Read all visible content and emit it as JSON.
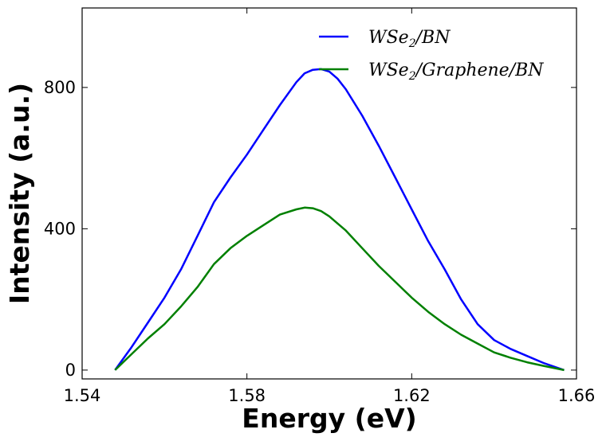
{
  "chart_data": {
    "type": "line",
    "xlabel": "Energy (eV)",
    "ylabel": "Intensity (a.u.)",
    "xlim": [
      1.54,
      1.66
    ],
    "ylim": [
      -25,
      1025
    ],
    "xticks": [
      1.54,
      1.58,
      1.62,
      1.66
    ],
    "xtick_labels": [
      "1.54",
      "1.58",
      "1.62",
      "1.66"
    ],
    "yticks": [
      0,
      400,
      800
    ],
    "ytick_labels": [
      "0",
      "400",
      "800"
    ],
    "grid": false,
    "legend_position": "top-right",
    "series": [
      {
        "name": "WSe2/BN",
        "legend_main": "WSe",
        "legend_sub": "2",
        "legend_rest": "/BN",
        "color": "#0000ff",
        "x": [
          1.548,
          1.552,
          1.556,
          1.56,
          1.564,
          1.568,
          1.572,
          1.576,
          1.58,
          1.584,
          1.588,
          1.592,
          1.594,
          1.596,
          1.598,
          1.6,
          1.602,
          1.604,
          1.608,
          1.612,
          1.616,
          1.62,
          1.624,
          1.628,
          1.632,
          1.636,
          1.64,
          1.644,
          1.648,
          1.652,
          1.657
        ],
        "y": [
          0,
          65,
          135,
          205,
          285,
          380,
          475,
          545,
          610,
          680,
          750,
          815,
          840,
          850,
          852,
          845,
          825,
          795,
          720,
          635,
          545,
          455,
          365,
          285,
          200,
          130,
          85,
          60,
          40,
          20,
          0
        ]
      },
      {
        "name": "WSe2/Graphene/BN",
        "legend_main": "WSe",
        "legend_sub": "2",
        "legend_rest": "/Graphene/BN",
        "color": "#008000",
        "x": [
          1.548,
          1.552,
          1.556,
          1.56,
          1.564,
          1.568,
          1.572,
          1.576,
          1.58,
          1.584,
          1.588,
          1.592,
          1.594,
          1.596,
          1.598,
          1.6,
          1.602,
          1.604,
          1.608,
          1.612,
          1.616,
          1.62,
          1.624,
          1.628,
          1.632,
          1.636,
          1.64,
          1.644,
          1.648,
          1.652,
          1.657
        ],
        "y": [
          0,
          45,
          90,
          130,
          180,
          235,
          300,
          345,
          380,
          410,
          440,
          455,
          460,
          458,
          450,
          435,
          415,
          395,
          345,
          295,
          250,
          205,
          165,
          130,
          100,
          75,
          50,
          35,
          22,
          12,
          0
        ]
      }
    ]
  }
}
